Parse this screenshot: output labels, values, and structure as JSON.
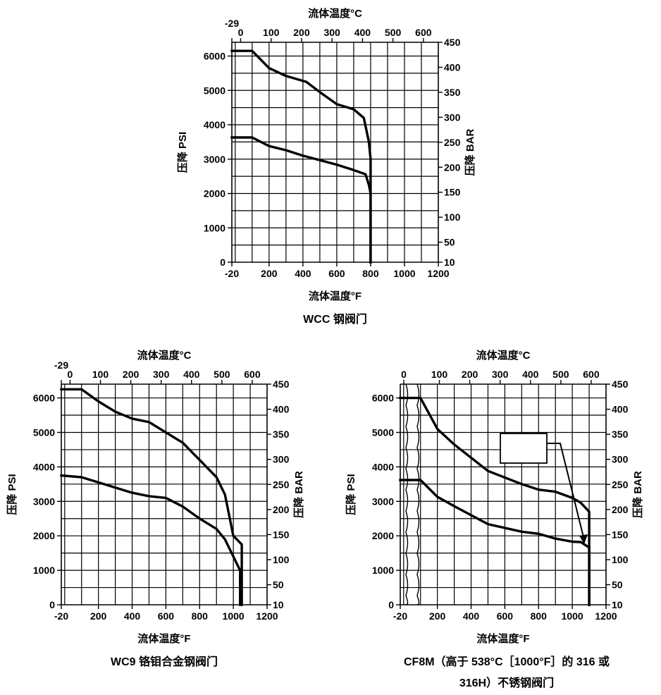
{
  "chart_data": [
    {
      "type": "line",
      "caption": "WCC 钢阀门",
      "xlabel": "流体温度°F",
      "x2label": "流体温度°C",
      "ylabel": "压降 PSI",
      "y2label": "压降 BAR",
      "xlim": [
        -20,
        1200
      ],
      "ylim": [
        0,
        6400
      ],
      "x_ticks": [
        -20,
        200,
        400,
        600,
        800,
        1000,
        1200
      ],
      "y_ticks": [
        0,
        1000,
        2000,
        3000,
        4000,
        5000,
        6000
      ],
      "c_ticks": [
        -29,
        0,
        100,
        200,
        300,
        400,
        500,
        600
      ],
      "bar_ticks": [
        10,
        50,
        100,
        150,
        200,
        250,
        300,
        350,
        400,
        450
      ],
      "grid": true,
      "series": [
        {
          "x": [
            -20,
            100,
            200,
            300,
            420,
            500,
            600,
            700,
            760,
            790,
            800,
            800
          ],
          "y": [
            6150,
            6150,
            5650,
            5420,
            5250,
            4950,
            4600,
            4450,
            4200,
            3500,
            3000,
            0
          ]
        },
        {
          "x": [
            -20,
            100,
            200,
            300,
            400,
            500,
            600,
            700,
            770,
            790,
            800,
            800
          ],
          "y": [
            3630,
            3630,
            3380,
            3260,
            3100,
            2970,
            2840,
            2680,
            2560,
            2250,
            2000,
            0
          ]
        }
      ]
    },
    {
      "type": "line",
      "caption": "WC9 铬钼合金钢阀门",
      "xlabel": "流体温度°F",
      "x2label": "流体温度°C",
      "ylabel": "压降 PSI",
      "y2label": "压降 BAR",
      "xlim": [
        -20,
        1200
      ],
      "ylim": [
        0,
        6400
      ],
      "x_ticks": [
        -20,
        200,
        400,
        600,
        800,
        1000,
        1200
      ],
      "y_ticks": [
        0,
        1000,
        2000,
        3000,
        4000,
        5000,
        6000
      ],
      "c_ticks": [
        -29,
        0,
        100,
        200,
        300,
        400,
        500,
        600
      ],
      "bar_ticks": [
        10,
        50,
        100,
        150,
        200,
        250,
        300,
        350,
        400,
        450
      ],
      "grid": true,
      "series": [
        {
          "x": [
            -20,
            100,
            200,
            300,
            400,
            500,
            600,
            700,
            800,
            900,
            950,
            1000,
            1050,
            1050
          ],
          "y": [
            6250,
            6250,
            5900,
            5600,
            5400,
            5300,
            5000,
            4700,
            4200,
            3700,
            3200,
            2000,
            1750,
            0
          ]
        },
        {
          "x": [
            -20,
            100,
            200,
            300,
            400,
            500,
            600,
            700,
            800,
            900,
            950,
            1000,
            1040,
            1040
          ],
          "y": [
            3750,
            3700,
            3550,
            3400,
            3250,
            3150,
            3100,
            2850,
            2500,
            2200,
            1900,
            1400,
            1000,
            0
          ]
        }
      ]
    },
    {
      "type": "line",
      "caption_line1": "CF8M（高于 538°C［1000°F］的 316 或",
      "caption_line2": "316H）不锈钢阀门",
      "xlabel": "流体温度°F",
      "x2label": "流体温度°C",
      "ylabel": "压降 PSI",
      "y2label": "压降 BAR",
      "xlim": [
        -20,
        1200
      ],
      "ylim": [
        0,
        6400
      ],
      "x_ticks": [
        -20,
        200,
        400,
        600,
        800,
        1000,
        1200
      ],
      "y_ticks": [
        0,
        1000,
        2000,
        3000,
        4000,
        5000,
        6000
      ],
      "c_ticks": [
        0,
        100,
        200,
        300,
        400,
        500,
        600
      ],
      "bar_ticks": [
        10,
        50,
        100,
        150,
        200,
        250,
        300,
        350,
        400,
        450
      ],
      "grid": true,
      "series": [
        {
          "x": [
            -20,
            10,
            100,
            200,
            300,
            500,
            700,
            800,
            900,
            1000,
            1050,
            1100,
            1100
          ],
          "y": [
            6000,
            6000,
            6000,
            5100,
            4650,
            3880,
            3500,
            3340,
            3280,
            3100,
            2960,
            2700,
            0
          ]
        },
        {
          "x": [
            -20,
            10,
            100,
            200,
            300,
            500,
            700,
            800,
            900,
            1000,
            1050,
            1100,
            1100
          ],
          "y": [
            3620,
            3620,
            3620,
            3130,
            2860,
            2340,
            2120,
            2060,
            1920,
            1830,
            1820,
            1660,
            0
          ]
        }
      ]
    }
  ]
}
